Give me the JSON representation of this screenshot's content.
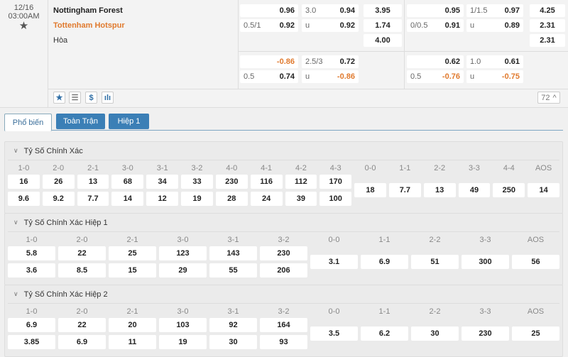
{
  "match": {
    "date": "12/16",
    "time": "03:00AM",
    "home": "Nottingham Forest",
    "away": "Tottenham Hotspur",
    "draw": "Hòa",
    "odds": {
      "ft_hdp": [
        {
          "label": "",
          "value": "0.96"
        },
        {
          "label": "0.5/1",
          "value": "0.92"
        }
      ],
      "ft_ou": [
        {
          "label": "3.0",
          "value": "0.94"
        },
        {
          "label": "u",
          "value": "0.92"
        }
      ],
      "ft_1x2": [
        "3.95",
        "1.74",
        "4.00"
      ],
      "ft_hdp2": [
        {
          "label": "",
          "value": "-0.86"
        },
        {
          "label": "0.5",
          "value": "0.74"
        }
      ],
      "ft_ou2": [
        {
          "label": "2.5/3",
          "value": "0.72"
        },
        {
          "label": "u",
          "value": "-0.86"
        }
      ],
      "h1_hdp": [
        {
          "label": "",
          "value": "0.95"
        },
        {
          "label": "0/0.5",
          "value": "0.91"
        }
      ],
      "h1_ou": [
        {
          "label": "1/1.5",
          "value": "0.97"
        },
        {
          "label": "u",
          "value": "0.89"
        }
      ],
      "h1_1x2": [
        "4.25",
        "2.31",
        "2.31"
      ],
      "h1_hdp2": [
        {
          "label": "",
          "value": "0.62"
        },
        {
          "label": "0.5",
          "value": "-0.76"
        }
      ],
      "h1_ou2": [
        {
          "label": "1.0",
          "value": "0.61"
        },
        {
          "label": "u",
          "value": "-0.75"
        }
      ]
    },
    "more_count": "72",
    "icons": [
      "star-icon",
      "list-icon",
      "dollar-icon",
      "stats-icon"
    ]
  },
  "colors": {
    "accent": "#3b7fb6",
    "negative": "#e07a2e",
    "away_team": "#e07a2e"
  },
  "tabs": [
    "Phổ biến",
    "Toàn Trận",
    "Hiệp 1"
  ],
  "sections": [
    {
      "title": "Tỷ Số Chính Xác",
      "columns": [
        {
          "label": "1-0",
          "values": [
            "16",
            "9.6"
          ]
        },
        {
          "label": "2-0",
          "values": [
            "26",
            "9.2"
          ]
        },
        {
          "label": "2-1",
          "values": [
            "13",
            "7.7"
          ]
        },
        {
          "label": "3-0",
          "values": [
            "68",
            "14"
          ]
        },
        {
          "label": "3-1",
          "values": [
            "34",
            "12"
          ]
        },
        {
          "label": "3-2",
          "values": [
            "33",
            "19"
          ]
        },
        {
          "label": "4-0",
          "values": [
            "230",
            "28"
          ]
        },
        {
          "label": "4-1",
          "values": [
            "116",
            "24"
          ]
        },
        {
          "label": "4-2",
          "values": [
            "112",
            "39"
          ]
        },
        {
          "label": "4-3",
          "values": [
            "170",
            "100"
          ]
        },
        {
          "label": "0-0",
          "values": [
            "18"
          ]
        },
        {
          "label": "1-1",
          "values": [
            "7.7"
          ]
        },
        {
          "label": "2-2",
          "values": [
            "13"
          ]
        },
        {
          "label": "3-3",
          "values": [
            "49"
          ]
        },
        {
          "label": "4-4",
          "values": [
            "250"
          ]
        },
        {
          "label": "AOS",
          "values": [
            "14"
          ]
        }
      ]
    },
    {
      "title": "Tỷ Số Chính Xác Hiệp 1",
      "columns": [
        {
          "label": "1-0",
          "values": [
            "5.8",
            "3.6"
          ]
        },
        {
          "label": "2-0",
          "values": [
            "22",
            "8.5"
          ]
        },
        {
          "label": "2-1",
          "values": [
            "25",
            "15"
          ]
        },
        {
          "label": "3-0",
          "values": [
            "123",
            "29"
          ]
        },
        {
          "label": "3-1",
          "values": [
            "143",
            "55"
          ]
        },
        {
          "label": "3-2",
          "values": [
            "230",
            "206"
          ]
        },
        {
          "label": "0-0",
          "values": [
            "3.1"
          ]
        },
        {
          "label": "1-1",
          "values": [
            "6.9"
          ]
        },
        {
          "label": "2-2",
          "values": [
            "51"
          ]
        },
        {
          "label": "3-3",
          "values": [
            "300"
          ]
        },
        {
          "label": "AOS",
          "values": [
            "56"
          ]
        }
      ]
    },
    {
      "title": "Tỷ Số Chính Xác Hiệp 2",
      "columns": [
        {
          "label": "1-0",
          "values": [
            "6.9",
            "3.85"
          ]
        },
        {
          "label": "2-0",
          "values": [
            "22",
            "6.9"
          ]
        },
        {
          "label": "2-1",
          "values": [
            "20",
            "11"
          ]
        },
        {
          "label": "3-0",
          "values": [
            "103",
            "19"
          ]
        },
        {
          "label": "3-1",
          "values": [
            "92",
            "30"
          ]
        },
        {
          "label": "3-2",
          "values": [
            "164",
            "93"
          ]
        },
        {
          "label": "0-0",
          "values": [
            "3.5"
          ]
        },
        {
          "label": "1-1",
          "values": [
            "6.2"
          ]
        },
        {
          "label": "2-2",
          "values": [
            "30"
          ]
        },
        {
          "label": "3-3",
          "values": [
            "230"
          ]
        },
        {
          "label": "AOS",
          "values": [
            "25"
          ]
        }
      ]
    }
  ]
}
